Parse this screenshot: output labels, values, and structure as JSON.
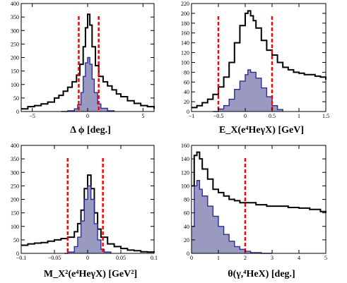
{
  "colors": {
    "black": "#000000",
    "blue_line": "#2a2aa0",
    "blue_fill": "#9a9ac0",
    "cut": "#ff0000"
  },
  "chart_data": [
    {
      "id": "dphi",
      "type": "histogram",
      "xlabel": "Δ ϕ [deg.]",
      "xlim": [
        -6,
        6
      ],
      "ylim": [
        0,
        400
      ],
      "xticks": [
        -5,
        0,
        5
      ],
      "xtick_labels": [
        "−5",
        "0",
        "5"
      ],
      "yticks": [
        0,
        50,
        100,
        150,
        200,
        250,
        300,
        350,
        400
      ],
      "ytick_labels": [
        "0",
        "50",
        "100",
        "150",
        "200",
        "250",
        "300",
        "350",
        "400"
      ],
      "cuts": [
        -0.8,
        1.0
      ],
      "series": [
        {
          "style": "black",
          "x": [
            -6.0,
            -5.4,
            -4.8,
            -4.2,
            -3.6,
            -3.0,
            -2.6,
            -2.2,
            -1.8,
            -1.4,
            -1.0,
            -0.7,
            -0.4,
            -0.2,
            0.0,
            0.2,
            0.4,
            0.7,
            1.0,
            1.4,
            1.8,
            2.2,
            2.6,
            3.0,
            3.6,
            4.2,
            4.8,
            5.4,
            6.0
          ],
          "y": [
            10,
            18,
            22,
            28,
            35,
            50,
            60,
            75,
            90,
            110,
            135,
            175,
            240,
            310,
            360,
            320,
            240,
            170,
            130,
            110,
            95,
            80,
            65,
            55,
            40,
            30,
            22,
            18,
            10
          ]
        },
        {
          "style": "blue",
          "x": [
            -2.4,
            -1.8,
            -1.2,
            -0.9,
            -0.6,
            -0.4,
            -0.2,
            0.0,
            0.2,
            0.4,
            0.6,
            0.9,
            1.2,
            1.8,
            2.4
          ],
          "y": [
            0,
            3,
            10,
            25,
            70,
            130,
            180,
            200,
            175,
            120,
            70,
            28,
            12,
            3,
            0
          ]
        }
      ]
    },
    {
      "id": "ex",
      "type": "histogram",
      "xlabel": "E_X(e⁴HeγX) [GeV]",
      "xlim": [
        -1,
        1.5
      ],
      "ylim": [
        0,
        220
      ],
      "xticks": [
        -1,
        -0.5,
        0,
        0.5,
        1,
        1.5
      ],
      "xtick_labels": [
        "−1",
        "−0.5",
        "0",
        "0.5",
        "1",
        "1.5"
      ],
      "yticks": [
        0,
        20,
        40,
        60,
        80,
        100,
        120,
        140,
        160,
        180,
        200,
        220
      ],
      "ytick_labels": [
        "0",
        "20",
        "40",
        "60",
        "80",
        "100",
        "120",
        "140",
        "160",
        "180",
        "200",
        "220"
      ],
      "cuts": [
        -0.5,
        0.5
      ],
      "series": [
        {
          "style": "black",
          "x": [
            -1.0,
            -0.9,
            -0.8,
            -0.7,
            -0.6,
            -0.5,
            -0.4,
            -0.3,
            -0.2,
            -0.1,
            0.0,
            0.05,
            0.1,
            0.15,
            0.2,
            0.3,
            0.4,
            0.5,
            0.6,
            0.7,
            0.8,
            0.9,
            1.0,
            1.1,
            1.2,
            1.3,
            1.4,
            1.5
          ],
          "y": [
            8,
            12,
            18,
            25,
            35,
            50,
            70,
            100,
            140,
            175,
            200,
            205,
            195,
            185,
            170,
            145,
            125,
            115,
            100,
            90,
            85,
            80,
            78,
            75,
            75,
            72,
            70,
            65
          ]
        },
        {
          "style": "blue",
          "x": [
            -0.6,
            -0.5,
            -0.4,
            -0.3,
            -0.2,
            -0.1,
            0.0,
            0.05,
            0.1,
            0.2,
            0.3,
            0.4,
            0.5,
            0.6,
            0.7
          ],
          "y": [
            0,
            5,
            12,
            25,
            45,
            62,
            75,
            85,
            80,
            68,
            48,
            30,
            12,
            4,
            0
          ]
        }
      ]
    },
    {
      "id": "mx2",
      "type": "histogram",
      "xlabel": "M_X²(e⁴HeγX) [GeV²]",
      "xlim": [
        -0.1,
        0.1
      ],
      "ylim": [
        0,
        400
      ],
      "xticks": [
        -0.1,
        -0.05,
        0,
        0.05,
        0.1
      ],
      "xtick_labels": [
        "−0.1",
        "−0.05",
        "0",
        "0.05",
        "0.1"
      ],
      "yticks": [
        0,
        50,
        100,
        150,
        200,
        250,
        300,
        350,
        400
      ],
      "ytick_labels": [
        "0",
        "50",
        "100",
        "150",
        "200",
        "250",
        "300",
        "350",
        "400"
      ],
      "cuts": [
        -0.03,
        0.023
      ],
      "series": [
        {
          "style": "black",
          "x": [
            -0.1,
            -0.09,
            -0.08,
            -0.07,
            -0.06,
            -0.05,
            -0.04,
            -0.03,
            -0.02,
            -0.015,
            -0.01,
            -0.005,
            0.0,
            0.005,
            0.01,
            0.015,
            0.02,
            0.03,
            0.04,
            0.05,
            0.06,
            0.07,
            0.08,
            0.09,
            0.1
          ],
          "y": [
            30,
            35,
            38,
            40,
            45,
            50,
            55,
            60,
            80,
            110,
            160,
            240,
            290,
            240,
            150,
            90,
            60,
            35,
            25,
            18,
            12,
            10,
            6,
            5,
            3
          ]
        },
        {
          "style": "blue",
          "x": [
            -0.035,
            -0.03,
            -0.02,
            -0.015,
            -0.01,
            -0.005,
            0.0,
            0.005,
            0.01,
            0.015,
            0.02,
            0.025,
            0.035
          ],
          "y": [
            0,
            5,
            25,
            60,
            120,
            200,
            250,
            200,
            110,
            50,
            15,
            5,
            0
          ]
        }
      ]
    },
    {
      "id": "theta",
      "type": "histogram",
      "xlabel": "θ(γ,⁴HeX) [deg.]",
      "xlim": [
        0,
        5
      ],
      "ylim": [
        0,
        160
      ],
      "xticks": [
        0,
        1,
        2,
        3,
        4,
        5
      ],
      "xtick_labels": [
        "0",
        "1",
        "2",
        "3",
        "4",
        "5"
      ],
      "yticks": [
        0,
        20,
        40,
        60,
        80,
        100,
        120,
        140,
        160
      ],
      "ytick_labels": [
        "0",
        "20",
        "40",
        "60",
        "80",
        "100",
        "120",
        "140",
        "160"
      ],
      "cuts": [
        2.0
      ],
      "series": [
        {
          "style": "black",
          "x": [
            0.0,
            0.1,
            0.2,
            0.3,
            0.4,
            0.6,
            0.8,
            1.0,
            1.2,
            1.4,
            1.6,
            1.8,
            2.0,
            2.4,
            2.8,
            3.2,
            3.6,
            4.0,
            4.4,
            4.8,
            5.0
          ],
          "y": [
            100,
            145,
            150,
            140,
            125,
            110,
            95,
            90,
            85,
            80,
            78,
            75,
            75,
            72,
            70,
            70,
            68,
            67,
            65,
            62,
            60
          ]
        },
        {
          "style": "blue",
          "x": [
            0.0,
            0.1,
            0.2,
            0.3,
            0.4,
            0.6,
            0.8,
            1.0,
            1.2,
            1.4,
            1.6,
            1.8,
            2.0,
            2.2,
            2.6,
            3.0
          ],
          "y": [
            40,
            100,
            108,
            95,
            85,
            70,
            55,
            40,
            28,
            18,
            10,
            6,
            3,
            1,
            0,
            0
          ]
        }
      ]
    }
  ]
}
